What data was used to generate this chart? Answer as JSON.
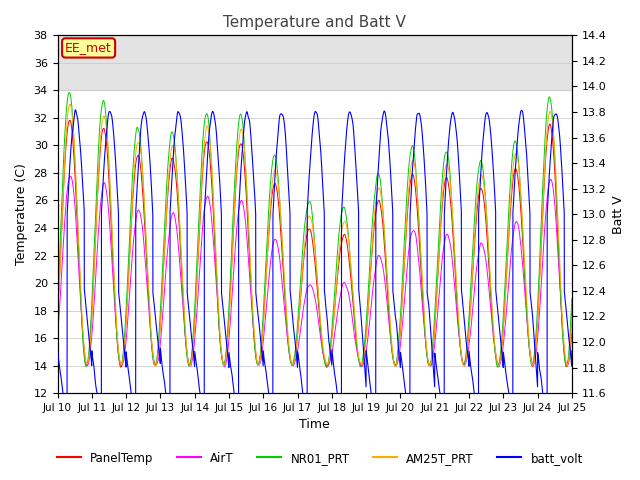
{
  "title": "Temperature and Batt V",
  "xlabel": "Time",
  "ylabel_left": "Temperature (C)",
  "ylabel_right": "Batt V",
  "ylim_left": [
    12,
    38
  ],
  "ylim_right": [
    11.6,
    14.4
  ],
  "xtick_labels": [
    "Jul 10",
    "Jul 11",
    "Jul 12",
    "Jul 13",
    "Jul 14",
    "Jul 15",
    "Jul 16",
    "Jul 17",
    "Jul 18",
    "Jul 19",
    "Jul 20",
    "Jul 21",
    "Jul 22",
    "Jul 23",
    "Jul 24",
    "Jul 25"
  ],
  "yticks_left": [
    12,
    14,
    16,
    18,
    20,
    22,
    24,
    26,
    28,
    30,
    32,
    34,
    36,
    38
  ],
  "yticks_right": [
    11.6,
    11.8,
    12.0,
    12.2,
    12.4,
    12.6,
    12.8,
    13.0,
    13.2,
    13.4,
    13.6,
    13.8,
    14.0,
    14.2,
    14.4
  ],
  "annotation_text": "EE_met",
  "annotation_color": "#cc0000",
  "annotation_bg": "#ffff99",
  "colors": {
    "PanelTemp": "#ff0000",
    "AirT": "#ff00ff",
    "NR01_PRT": "#00cc00",
    "AM25T_PRT": "#ffaa00",
    "batt_volt": "#0000ff"
  },
  "legend_entries": [
    "PanelTemp",
    "AirT",
    "NR01_PRT",
    "AM25T_PRT",
    "batt_volt"
  ],
  "background_band": [
    34,
    38
  ],
  "n_days": 15,
  "seed": 42
}
